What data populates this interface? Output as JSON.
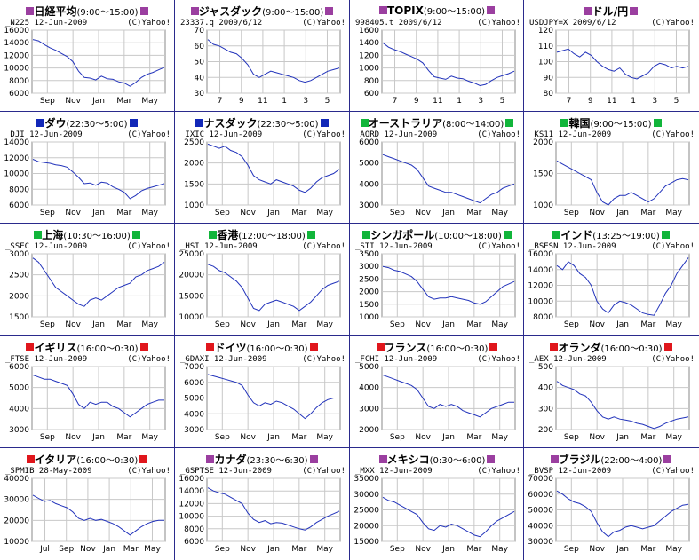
{
  "colors": {
    "purple": "#9b3fa0",
    "blue": "#1228b8",
    "green": "#11b53a",
    "red": "#e0161c",
    "line": "#2233bb",
    "grid": "#c8c8c8",
    "divider": "#2a2a8c"
  },
  "charts": [
    {
      "title": "日経平均",
      "time": "(9:00～15:00)",
      "marker": "purple",
      "right_marker": true,
      "symbol": "_N225 12-Jun-2009",
      "credit": "(C)Yahoo!",
      "chart_data": {
        "type": "line",
        "ylim": [
          6000,
          16000
        ],
        "yticks": [
          6000,
          8000,
          10000,
          12000,
          14000,
          16000
        ],
        "xticks": [
          "Sep",
          "Nov",
          "Jan",
          "Mar",
          "May"
        ],
        "values": [
          14500,
          14300,
          13700,
          13200,
          12800,
          12300,
          11800,
          11000,
          9500,
          8500,
          8400,
          8100,
          8700,
          8300,
          8200,
          7800,
          7600,
          7100,
          7700,
          8500,
          9000,
          9300,
          9700,
          10100
        ]
      }
    },
    {
      "title": "ジャスダック",
      "time": "(9:00～15:00)",
      "marker": "purple",
      "right_marker": true,
      "symbol": "23337.q 2009/6/12",
      "credit": "(C)Yahoo!",
      "chart_data": {
        "type": "line",
        "ylim": [
          30,
          70
        ],
        "yticks": [
          30,
          40,
          50,
          60,
          70
        ],
        "xticks": [
          "7",
          "9",
          "11",
          "1",
          "3",
          "5"
        ],
        "values": [
          64,
          61,
          60,
          58,
          56,
          55,
          52,
          48,
          42,
          40,
          42,
          44,
          43,
          42,
          41,
          40,
          38,
          37,
          38,
          40,
          42,
          44,
          45,
          46
        ]
      }
    },
    {
      "title": "TOPIX",
      "time": "(9:00～15:00)",
      "marker": "purple",
      "right_marker": true,
      "symbol": "998405.t 2009/6/12",
      "credit": "(C)Yahoo!",
      "chart_data": {
        "type": "line",
        "ylim": [
          600,
          1600
        ],
        "yticks": [
          600,
          800,
          1000,
          1200,
          1400,
          1600
        ],
        "xticks": [
          "7",
          "9",
          "11",
          "1",
          "3",
          "5"
        ],
        "values": [
          1400,
          1330,
          1290,
          1260,
          1220,
          1180,
          1140,
          1080,
          960,
          860,
          840,
          820,
          870,
          840,
          830,
          790,
          760,
          720,
          740,
          800,
          850,
          880,
          910,
          950
        ]
      }
    },
    {
      "title": "ドル/円",
      "time": "",
      "marker": "purple",
      "right_marker": true,
      "symbol": "USDJPY=X 2009/6/12",
      "credit": "(C)Yahoo!",
      "chart_data": {
        "type": "line",
        "ylim": [
          80,
          120
        ],
        "yticks": [
          80,
          90,
          100,
          110,
          120
        ],
        "xticks": [
          "7",
          "9",
          "11",
          "1",
          "3",
          "5"
        ],
        "values": [
          106,
          107,
          108,
          105,
          103,
          106,
          104,
          100,
          97,
          95,
          94,
          96,
          92,
          90,
          89,
          91,
          93,
          97,
          99,
          98,
          96,
          97,
          96,
          97
        ]
      }
    },
    {
      "title": "ダウ",
      "time": "(22:30～5:00)",
      "marker": "blue",
      "right_marker": true,
      "symbol": "_DJI 12-Jun-2009",
      "credit": "(C)Yahoo!",
      "chart_data": {
        "type": "line",
        "ylim": [
          6000,
          14000
        ],
        "yticks": [
          6000,
          8000,
          10000,
          12000,
          14000
        ],
        "xticks": [
          "Sep",
          "Nov",
          "Jan",
          "Mar",
          "May"
        ],
        "values": [
          11800,
          11500,
          11400,
          11300,
          11100,
          11000,
          10800,
          10200,
          9500,
          8700,
          8800,
          8500,
          8900,
          8800,
          8300,
          8000,
          7600,
          6800,
          7200,
          7800,
          8100,
          8300,
          8500,
          8700
        ]
      }
    },
    {
      "title": "ナスダック",
      "time": "(22:30～5:00)",
      "marker": "blue",
      "right_marker": true,
      "symbol": "_IXIC 12-Jun-2009",
      "credit": "(C)Yahoo!",
      "chart_data": {
        "type": "line",
        "ylim": [
          1000,
          2500
        ],
        "yticks": [
          1000,
          1500,
          2000,
          2500
        ],
        "xticks": [
          "Sep",
          "Nov",
          "Jan",
          "Mar",
          "May"
        ],
        "values": [
          2450,
          2400,
          2350,
          2400,
          2300,
          2250,
          2150,
          1950,
          1700,
          1600,
          1550,
          1500,
          1600,
          1550,
          1500,
          1450,
          1350,
          1300,
          1400,
          1550,
          1650,
          1700,
          1750,
          1850
        ]
      }
    },
    {
      "title": "オーストラリア",
      "time": "(8:00～14:00)",
      "marker": "green",
      "right_marker": true,
      "symbol": "_AORD 12-Jun-2009",
      "credit": "(C)Yahoo!",
      "chart_data": {
        "type": "line",
        "ylim": [
          3000,
          6000
        ],
        "yticks": [
          3000,
          4000,
          5000,
          6000
        ],
        "xticks": [
          "Sep",
          "Nov",
          "Jan",
          "Mar",
          "May"
        ],
        "values": [
          5400,
          5300,
          5200,
          5100,
          5000,
          4900,
          4700,
          4300,
          3900,
          3800,
          3700,
          3600,
          3600,
          3500,
          3400,
          3300,
          3200,
          3100,
          3300,
          3500,
          3600,
          3800,
          3900,
          4000
        ]
      }
    },
    {
      "title": "韓国",
      "time": "(9:00～15:00)",
      "marker": "green",
      "right_marker": true,
      "symbol": "_KS11 12-Jun-2009",
      "credit": "(C)Yahoo!",
      "chart_data": {
        "type": "line",
        "ylim": [
          1000,
          2000
        ],
        "yticks": [
          1000,
          1500,
          2000
        ],
        "xticks": [
          "Sep",
          "Nov",
          "Jan",
          "Mar",
          "May"
        ],
        "values": [
          1700,
          1650,
          1600,
          1550,
          1500,
          1450,
          1400,
          1200,
          1050,
          1000,
          1100,
          1150,
          1150,
          1200,
          1150,
          1100,
          1050,
          1100,
          1200,
          1300,
          1350,
          1400,
          1420,
          1400
        ]
      }
    },
    {
      "title": "上海",
      "time": "(10:30～16:00)",
      "marker": "green",
      "right_marker": true,
      "symbol": "_SSEC 12-Jun-2009",
      "credit": "(C)Yahoo!",
      "chart_data": {
        "type": "line",
        "ylim": [
          1500,
          3000
        ],
        "yticks": [
          1500,
          2000,
          2500,
          3000
        ],
        "xticks": [
          "Sep",
          "Nov",
          "Jan",
          "Mar",
          "May"
        ],
        "values": [
          2900,
          2800,
          2600,
          2400,
          2200,
          2100,
          2000,
          1900,
          1800,
          1750,
          1900,
          1950,
          1900,
          2000,
          2100,
          2200,
          2250,
          2300,
          2450,
          2500,
          2600,
          2650,
          2700,
          2800
        ]
      }
    },
    {
      "title": "香港",
      "time": "(12:00～18:00)",
      "marker": "green",
      "right_marker": true,
      "symbol": "_HSI 12-Jun-2009",
      "credit": "(C)Yahoo!",
      "chart_data": {
        "type": "line",
        "ylim": [
          10000,
          25000
        ],
        "yticks": [
          10000,
          15000,
          20000,
          25000
        ],
        "xticks": [
          "Sep",
          "Nov",
          "Jan",
          "Mar",
          "May"
        ],
        "values": [
          22500,
          22000,
          21000,
          20500,
          19500,
          18500,
          17000,
          14500,
          12000,
          11500,
          13000,
          13500,
          14000,
          13500,
          13000,
          12500,
          11500,
          12500,
          13500,
          15000,
          16500,
          17500,
          18000,
          18500
        ]
      }
    },
    {
      "title": "シンガポール",
      "time": "(10:00～18:00)",
      "marker": "green",
      "right_marker": true,
      "symbol": "_STI 12-Jun-2009",
      "credit": "(C)Yahoo!",
      "chart_data": {
        "type": "line",
        "ylim": [
          1000,
          3500
        ],
        "yticks": [
          1000,
          1500,
          2000,
          2500,
          3000,
          3500
        ],
        "xticks": [
          "Sep",
          "Nov",
          "Jan",
          "Mar",
          "May"
        ],
        "values": [
          3000,
          2950,
          2850,
          2800,
          2700,
          2600,
          2400,
          2100,
          1800,
          1700,
          1750,
          1750,
          1800,
          1750,
          1700,
          1650,
          1550,
          1500,
          1600,
          1800,
          2000,
          2200,
          2300,
          2400
        ]
      }
    },
    {
      "title": "インド",
      "time": "(13:25～19:00)",
      "marker": "green",
      "right_marker": true,
      "symbol": "_BSESN 12-Jun-2009",
      "credit": "(C)Yahoo!",
      "chart_data": {
        "type": "line",
        "ylim": [
          8000,
          16000
        ],
        "yticks": [
          8000,
          10000,
          12000,
          14000,
          16000
        ],
        "xticks": [
          "Sep",
          "Nov",
          "Jan",
          "Mar",
          "May"
        ],
        "values": [
          14500,
          14000,
          15000,
          14500,
          13500,
          13000,
          12000,
          10000,
          9000,
          8500,
          9500,
          10000,
          9800,
          9500,
          9000,
          8500,
          8300,
          8200,
          9500,
          11000,
          12000,
          13500,
          14500,
          15500
        ]
      }
    },
    {
      "title": "イギリス",
      "time": "(16:00～0:30)",
      "marker": "red",
      "right_marker": true,
      "symbol": "_FTSE 12-Jun-2009",
      "credit": "(C)Yahoo!",
      "chart_data": {
        "type": "line",
        "ylim": [
          3000,
          6000
        ],
        "yticks": [
          3000,
          4000,
          5000,
          6000
        ],
        "xticks": [
          "Sep",
          "Nov",
          "Jan",
          "Mar",
          "May"
        ],
        "values": [
          5600,
          5500,
          5400,
          5400,
          5300,
          5200,
          5100,
          4700,
          4200,
          4000,
          4300,
          4200,
          4300,
          4300,
          4100,
          4000,
          3800,
          3600,
          3800,
          4000,
          4200,
          4300,
          4400,
          4400
        ]
      }
    },
    {
      "title": "ドイツ",
      "time": "(16:00～0:30)",
      "marker": "red",
      "right_marker": true,
      "symbol": "_GDAXI 12-Jun-2009",
      "credit": "(C)Yahoo!",
      "chart_data": {
        "type": "line",
        "ylim": [
          3000,
          7000
        ],
        "yticks": [
          3000,
          4000,
          5000,
          6000,
          7000
        ],
        "xticks": [
          "Sep",
          "Nov",
          "Jan",
          "Mar",
          "May"
        ],
        "values": [
          6500,
          6400,
          6300,
          6200,
          6100,
          6000,
          5800,
          5200,
          4700,
          4500,
          4700,
          4600,
          4800,
          4700,
          4500,
          4300,
          4000,
          3700,
          4000,
          4400,
          4700,
          4900,
          5000,
          5000
        ]
      }
    },
    {
      "title": "フランス",
      "time": "(16:00～0:30)",
      "marker": "red",
      "right_marker": true,
      "symbol": "_FCHI 12-Jun-2009",
      "credit": "(C)Yahoo!",
      "chart_data": {
        "type": "line",
        "ylim": [
          2000,
          5000
        ],
        "yticks": [
          2000,
          3000,
          4000,
          5000
        ],
        "xticks": [
          "Sep",
          "Nov",
          "Jan",
          "Mar",
          "May"
        ],
        "values": [
          4600,
          4500,
          4400,
          4300,
          4200,
          4100,
          3900,
          3500,
          3100,
          3000,
          3200,
          3100,
          3200,
          3100,
          2900,
          2800,
          2700,
          2600,
          2800,
          3000,
          3100,
          3200,
          3300,
          3300
        ]
      }
    },
    {
      "title": "オランダ",
      "time": "(16:00～0:30)",
      "marker": "red",
      "right_marker": true,
      "symbol": "_AEX 12-Jun-2009",
      "credit": "(C)Yahoo!",
      "chart_data": {
        "type": "line",
        "ylim": [
          200,
          500
        ],
        "yticks": [
          200,
          300,
          400,
          500
        ],
        "xticks": [
          "Sep",
          "Nov",
          "Jan",
          "Mar",
          "May"
        ],
        "values": [
          430,
          410,
          400,
          390,
          370,
          360,
          330,
          290,
          260,
          250,
          260,
          250,
          245,
          240,
          230,
          225,
          215,
          205,
          215,
          230,
          240,
          250,
          255,
          260
        ]
      }
    },
    {
      "title": "イタリア",
      "time": "(16:00～0:30)",
      "marker": "red",
      "right_marker": true,
      "symbol": "_SPMIB 28-May-2009",
      "credit": "(C)Yahoo!",
      "chart_data": {
        "type": "line",
        "ylim": [
          10000,
          40000
        ],
        "yticks": [
          10000,
          20000,
          30000,
          40000
        ],
        "xticks": [
          "Jul",
          "Sep",
          "Nov",
          "Jan",
          "Mar",
          "May"
        ],
        "values": [
          32000,
          30500,
          29000,
          29500,
          28000,
          27000,
          26000,
          24000,
          21000,
          20000,
          21000,
          20000,
          20500,
          19500,
          18500,
          17000,
          15000,
          13000,
          15000,
          17000,
          18500,
          19500,
          20000,
          20000
        ]
      }
    },
    {
      "title": "カナダ",
      "time": "(23:30～6:30)",
      "marker": "purple",
      "right_marker": true,
      "symbol": "_GSPTSE 12-Jun-2009",
      "credit": "(C)Yahoo!",
      "chart_data": {
        "type": "line",
        "ylim": [
          6000,
          16000
        ],
        "yticks": [
          6000,
          8000,
          10000,
          12000,
          14000,
          16000
        ],
        "xticks": [
          "Sep",
          "Nov",
          "Jan",
          "Mar",
          "May"
        ],
        "values": [
          14500,
          14000,
          13700,
          13500,
          13000,
          12500,
          12000,
          10500,
          9500,
          9000,
          9300,
          8800,
          9000,
          8900,
          8600,
          8300,
          8000,
          7800,
          8300,
          9000,
          9500,
          10000,
          10400,
          10800
        ]
      }
    },
    {
      "title": "メキシコ",
      "time": "(0:30～6:00)",
      "marker": "purple",
      "right_marker": true,
      "symbol": "_MXX 12-Jun-2009",
      "credit": "(C)Yahoo!",
      "chart_data": {
        "type": "line",
        "ylim": [
          15000,
          35000
        ],
        "yticks": [
          15000,
          20000,
          25000,
          30000,
          35000
        ],
        "xticks": [
          "Sep",
          "Nov",
          "Jan",
          "Mar",
          "May"
        ],
        "values": [
          29000,
          28000,
          27500,
          26500,
          25500,
          24500,
          23500,
          21000,
          19000,
          18500,
          20000,
          19500,
          20500,
          20000,
          19000,
          18000,
          17000,
          16500,
          18000,
          20000,
          21500,
          22500,
          23500,
          24500
        ]
      }
    },
    {
      "title": "ブラジル",
      "time": "(22:00～4:00)",
      "marker": "purple",
      "right_marker": true,
      "symbol": "_BVSP 12-Jun-2009",
      "credit": "(C)Yahoo!",
      "chart_data": {
        "type": "line",
        "ylim": [
          30000,
          70000
        ],
        "yticks": [
          30000,
          40000,
          50000,
          60000,
          70000
        ],
        "xticks": [
          "Sep",
          "Nov",
          "Jan",
          "Mar",
          "May"
        ],
        "values": [
          62000,
          60000,
          57000,
          55000,
          54000,
          52000,
          49000,
          42000,
          36000,
          33000,
          36000,
          37000,
          39000,
          40000,
          39000,
          38000,
          39000,
          40000,
          43000,
          46000,
          49000,
          51000,
          53000,
          53500
        ]
      }
    }
  ]
}
